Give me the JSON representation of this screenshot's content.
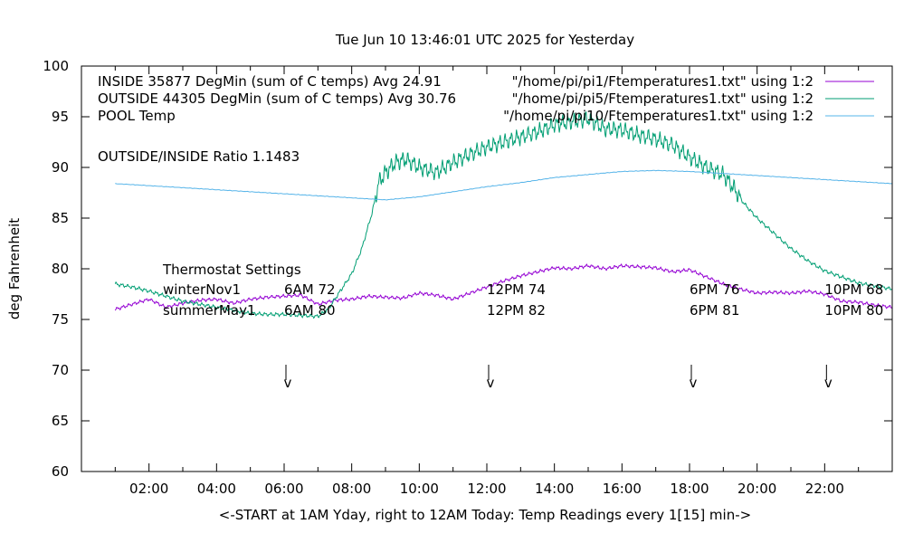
{
  "chart_data": {
    "type": "line",
    "title": "Tue Jun 10 13:46:01 UTC 2025 for Yesterday",
    "ylabel": "deg Fahrenheit",
    "xlabel": "<-START at 1AM Yday, right to 12AM Today:  Temp Readings every 1[15] min->",
    "xlim": [
      0,
      24
    ],
    "ylim": [
      60,
      100
    ],
    "y_ticks": [
      "100",
      "95",
      "90",
      "85",
      "80",
      "75",
      "70",
      "65",
      "60"
    ],
    "x_ticks": [
      "02:00",
      "04:00",
      "06:00",
      "08:00",
      "10:00",
      "12:00",
      "14:00",
      "16:00",
      "18:00",
      "20:00",
      "22:00"
    ],
    "grid": false,
    "legend_position": "top-right",
    "series": [
      {
        "name": "INSIDE 35877 DegMin (sum of C temps) Avg 24.91",
        "source": "\"/home/pi/pi1/Ftemperatures1.txt\" using 1:2",
        "color": "#9400d3",
        "x": [
          1.0,
          1.5,
          2.0,
          2.5,
          3.0,
          3.5,
          4.0,
          4.5,
          5.0,
          5.5,
          6.0,
          6.5,
          7.0,
          7.5,
          8.0,
          8.5,
          9.0,
          9.5,
          10.0,
          10.5,
          11.0,
          11.5,
          12.0,
          12.5,
          13.0,
          13.5,
          14.0,
          14.5,
          15.0,
          15.5,
          16.0,
          16.5,
          17.0,
          17.5,
          18.0,
          18.5,
          19.0,
          19.5,
          20.0,
          20.5,
          21.0,
          21.5,
          22.0,
          22.5,
          23.0,
          23.5,
          24.0
        ],
        "y": [
          76.0,
          76.5,
          77.0,
          76.2,
          76.6,
          76.9,
          77.0,
          76.6,
          77.0,
          77.2,
          77.3,
          77.4,
          76.5,
          76.9,
          77.0,
          77.3,
          77.2,
          77.1,
          77.6,
          77.4,
          77.0,
          77.6,
          78.2,
          78.8,
          79.3,
          79.7,
          80.1,
          80.0,
          80.3,
          80.0,
          80.3,
          80.2,
          80.1,
          79.7,
          79.9,
          79.2,
          78.5,
          78.0,
          77.6,
          77.7,
          77.6,
          77.8,
          77.5,
          76.8,
          76.7,
          76.4,
          76.2
        ]
      },
      {
        "name": "OUTSIDE 44305 DegMin (sum of C temps) Avg 30.76",
        "source": "\"/home/pi/pi5/Ftemperatures1.txt\" using 1:2",
        "color": "#009e73",
        "x": [
          1.0,
          1.5,
          2.0,
          2.5,
          3.0,
          3.5,
          4.0,
          4.5,
          5.0,
          5.5,
          6.0,
          6.5,
          7.0,
          7.3,
          7.6,
          8.0,
          8.3,
          8.6,
          8.8,
          9.0,
          9.3,
          9.6,
          10.0,
          10.5,
          11.0,
          11.5,
          12.0,
          12.5,
          13.0,
          13.5,
          14.0,
          14.5,
          15.0,
          15.5,
          16.0,
          16.5,
          17.0,
          17.5,
          18.0,
          18.5,
          19.0,
          19.3,
          19.6,
          20.0,
          20.5,
          21.0,
          21.5,
          22.0,
          22.5,
          23.0,
          23.5,
          24.0
        ],
        "y": [
          78.5,
          78.2,
          77.8,
          77.3,
          76.8,
          76.5,
          76.2,
          75.9,
          75.6,
          75.5,
          75.5,
          75.4,
          75.3,
          76.0,
          77.5,
          79.5,
          82.0,
          85.5,
          88.5,
          89.5,
          90.5,
          90.8,
          90.0,
          89.5,
          90.5,
          91.3,
          92.0,
          92.5,
          93.0,
          93.5,
          94.2,
          94.5,
          94.8,
          93.8,
          93.7,
          93.2,
          92.8,
          92.2,
          91.0,
          90.0,
          89.3,
          88.0,
          86.5,
          85.0,
          83.5,
          82.0,
          80.8,
          79.8,
          79.2,
          78.6,
          78.3,
          78.0
        ]
      },
      {
        "name": "POOL Temp",
        "source": "\"/home/pi/pi10/Ftemperatures1.txt\" using 1:2",
        "color": "#56b4e9",
        "x": [
          1.0,
          2.0,
          3.0,
          4.0,
          5.0,
          6.0,
          7.0,
          8.0,
          9.0,
          10.0,
          11.0,
          12.0,
          13.0,
          14.0,
          15.0,
          16.0,
          17.0,
          18.0,
          19.0,
          20.0,
          21.0,
          22.0,
          23.0,
          24.0
        ],
        "y": [
          88.4,
          88.2,
          88.0,
          87.8,
          87.6,
          87.4,
          87.2,
          87.0,
          86.8,
          87.1,
          87.6,
          88.1,
          88.5,
          89.0,
          89.3,
          89.6,
          89.7,
          89.6,
          89.4,
          89.2,
          89.0,
          88.8,
          88.6,
          88.4
        ]
      }
    ],
    "annotations": [
      {
        "text": "OUTSIDE/INSIDE Ratio 1.1483"
      },
      {
        "text": "Thermostat Settings"
      },
      {
        "text": "winterNov1"
      },
      {
        "text": "summerMay1"
      }
    ],
    "thermostat_markers": [
      {
        "x": 6,
        "winter": "6AM 72",
        "summer": "6AM 80",
        "arrow": "v"
      },
      {
        "x": 12,
        "winter": "12PM 74",
        "summer": "12PM 82",
        "arrow": "v"
      },
      {
        "x": 18,
        "winter": "6PM 76",
        "summer": "6PM 81",
        "arrow": "v"
      },
      {
        "x": 22,
        "winter": "10PM 68",
        "summer": "10PM 80",
        "arrow": "v"
      }
    ]
  }
}
